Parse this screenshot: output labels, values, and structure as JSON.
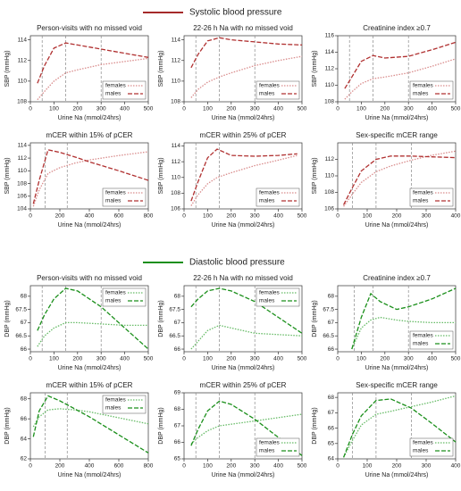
{
  "sections": [
    {
      "title": "Systolic blood pressure",
      "color": "#a52a2a"
    },
    {
      "title": "Diastolic blood pressure",
      "color": "#1a8f1a"
    }
  ],
  "chart_data": [
    {
      "type": "line",
      "section": 0,
      "title": "Person-visits with no missed void",
      "xlabel": "Urine Na (mmol/24hrs)",
      "ylabel": "SBP (mmHg)",
      "xlim": [
        0,
        500
      ],
      "xticks": [
        0,
        100,
        200,
        300,
        400,
        500
      ],
      "ylim": [
        108,
        114.4
      ],
      "yticks": [
        108,
        110,
        112,
        114
      ],
      "vlines": [
        50,
        150,
        300
      ],
      "legend": "lower right",
      "x": [
        30,
        60,
        100,
        150,
        200,
        300,
        400,
        500
      ],
      "series": [
        {
          "name": "females",
          "color": "#d98c8c",
          "dash": "dotted",
          "values": [
            108.2,
            109.0,
            110.0,
            110.8,
            111.1,
            111.6,
            111.9,
            112.2
          ]
        },
        {
          "name": "males",
          "color": "#b03030",
          "dash": "dashed",
          "values": [
            109.8,
            111.5,
            113.2,
            113.7,
            113.5,
            113.1,
            112.7,
            112.3
          ]
        }
      ]
    },
    {
      "type": "line",
      "section": 0,
      "title": "22-26 h Na with no missed void",
      "xlabel": "Urine Na (mmol/24hrs)",
      "ylabel": "SBP (mmHg)",
      "xlim": [
        0,
        500
      ],
      "xticks": [
        0,
        100,
        200,
        300,
        400,
        500
      ],
      "ylim": [
        108,
        114.4
      ],
      "yticks": [
        108,
        110,
        112,
        114
      ],
      "vlines": [
        50,
        150,
        300
      ],
      "legend": "lower right",
      "x": [
        30,
        60,
        100,
        150,
        200,
        300,
        400,
        500
      ],
      "series": [
        {
          "name": "females",
          "color": "#d98c8c",
          "dash": "dotted",
          "values": [
            108.4,
            109.2,
            109.9,
            110.4,
            110.8,
            111.5,
            112.0,
            112.4
          ]
        },
        {
          "name": "males",
          "color": "#b03030",
          "dash": "dashed",
          "values": [
            111.3,
            112.6,
            113.9,
            114.2,
            114.0,
            113.8,
            113.6,
            113.5
          ]
        }
      ]
    },
    {
      "type": "line",
      "section": 0,
      "title": "Creatinine index ≥0.7",
      "xlabel": "Urine Na (mmol/24hrs)",
      "ylabel": "SBP (mmHg)",
      "xlim": [
        0,
        500
      ],
      "xticks": [
        0,
        100,
        200,
        300,
        400,
        500
      ],
      "ylim": [
        108,
        116
      ],
      "yticks": [
        108,
        110,
        112,
        114,
        116
      ],
      "vlines": [
        50,
        150,
        300
      ],
      "legend": "lower right",
      "x": [
        30,
        60,
        100,
        150,
        200,
        300,
        400,
        500
      ],
      "series": [
        {
          "name": "females",
          "color": "#d98c8c",
          "dash": "dotted",
          "values": [
            108.3,
            109.2,
            110.2,
            110.8,
            111.0,
            111.5,
            112.3,
            113.2
          ]
        },
        {
          "name": "males",
          "color": "#b03030",
          "dash": "dashed",
          "values": [
            109.6,
            111.0,
            112.9,
            113.6,
            113.3,
            113.5,
            114.3,
            115.2
          ]
        }
      ]
    },
    {
      "type": "line",
      "section": 0,
      "title": "mCER within 15% of pCER",
      "xlabel": "Urine Na (mmol/24hrs)",
      "ylabel": "SBP (mmHg)",
      "xlim": [
        0,
        800
      ],
      "xticks": [
        0,
        200,
        400,
        600,
        800
      ],
      "ylim": [
        104,
        114.4
      ],
      "yticks": [
        104,
        106,
        108,
        110,
        112,
        114
      ],
      "vlines": [
        100,
        250
      ],
      "legend": "lower right",
      "x": [
        20,
        60,
        120,
        200,
        300,
        400,
        600,
        800
      ],
      "series": [
        {
          "name": "females",
          "color": "#d98c8c",
          "dash": "dotted",
          "values": [
            104.4,
            107.0,
            109.6,
            110.5,
            111.2,
            111.7,
            112.4,
            113.0
          ]
        },
        {
          "name": "males",
          "color": "#b03030",
          "dash": "dashed",
          "values": [
            104.8,
            108.5,
            113.3,
            112.9,
            112.2,
            111.4,
            110.0,
            108.5
          ]
        }
      ]
    },
    {
      "type": "line",
      "section": 0,
      "title": "mCER within 25% of pCER",
      "xlabel": "Urine Na (mmol/24hrs)",
      "ylabel": "SBP (mmHg)",
      "xlim": [
        0,
        500
      ],
      "xticks": [
        0,
        100,
        200,
        300,
        400,
        500
      ],
      "ylim": [
        106,
        114.4
      ],
      "yticks": [
        106,
        108,
        110,
        112,
        114
      ],
      "vlines": [
        50,
        150
      ],
      "legend": "lower right",
      "x": [
        30,
        60,
        100,
        140,
        200,
        300,
        400,
        480
      ],
      "series": [
        {
          "name": "females",
          "color": "#d98c8c",
          "dash": "dotted",
          "values": [
            106.4,
            107.8,
            109.2,
            110.0,
            110.6,
            111.5,
            112.2,
            112.8
          ]
        },
        {
          "name": "males",
          "color": "#b03030",
          "dash": "dashed",
          "values": [
            107.0,
            109.5,
            112.5,
            113.6,
            112.8,
            112.7,
            112.8,
            113.0
          ]
        }
      ]
    },
    {
      "type": "line",
      "section": 0,
      "title": "Sex-specific mCER range",
      "xlabel": "Urine Na (mmol/24hrs)",
      "ylabel": "SBP (mmHg)",
      "xlim": [
        0,
        400
      ],
      "xticks": [
        0,
        100,
        200,
        300,
        400
      ],
      "ylim": [
        106,
        114
      ],
      "yticks": [
        106,
        108,
        110,
        112
      ],
      "vlines": [
        50,
        130,
        250
      ],
      "legend": "lower right",
      "x": [
        20,
        50,
        80,
        130,
        180,
        250,
        320,
        400
      ],
      "series": [
        {
          "name": "females",
          "color": "#d98c8c",
          "dash": "dotted",
          "values": [
            106.3,
            107.8,
            109.2,
            110.5,
            111.2,
            111.9,
            112.5,
            113.0
          ]
        },
        {
          "name": "males",
          "color": "#b03030",
          "dash": "dashed",
          "values": [
            106.5,
            108.6,
            110.6,
            112.0,
            112.4,
            112.4,
            112.3,
            112.2
          ]
        }
      ]
    },
    {
      "type": "line",
      "section": 1,
      "title": "Person-visits with no missed void",
      "xlabel": "Urine Na (mmol/24hrs)",
      "ylabel": "DBP (mmHg)",
      "xlim": [
        0,
        500
      ],
      "xticks": [
        0,
        100,
        200,
        300,
        400,
        500
      ],
      "ylim": [
        65.9,
        68.4
      ],
      "yticks": [
        66,
        66.5,
        67,
        67.5,
        68
      ],
      "vlines": [
        50,
        150,
        300
      ],
      "legend": "upper right",
      "x": [
        30,
        60,
        100,
        150,
        200,
        300,
        400,
        500
      ],
      "series": [
        {
          "name": "females",
          "color": "#66bb66",
          "dash": "dotted",
          "values": [
            66.1,
            66.5,
            66.8,
            67.0,
            67.0,
            66.95,
            66.9,
            66.9
          ]
        },
        {
          "name": "males",
          "color": "#1a8f1a",
          "dash": "dashed",
          "values": [
            66.7,
            67.3,
            67.9,
            68.3,
            68.2,
            67.6,
            66.8,
            66.0
          ]
        }
      ]
    },
    {
      "type": "line",
      "section": 1,
      "title": "22-26 h Na with no missed void",
      "xlabel": "Urine Na (mmol/24hrs)",
      "ylabel": "DBP (mmHg)",
      "xlim": [
        0,
        500
      ],
      "xticks": [
        0,
        100,
        200,
        300,
        400,
        500
      ],
      "ylim": [
        65.9,
        68.4
      ],
      "yticks": [
        66,
        66.5,
        67,
        67.5,
        68
      ],
      "vlines": [
        50,
        150,
        300
      ],
      "legend": "upper right",
      "x": [
        30,
        60,
        100,
        150,
        200,
        300,
        400,
        500
      ],
      "series": [
        {
          "name": "females",
          "color": "#66bb66",
          "dash": "dotted",
          "values": [
            66.0,
            66.3,
            66.7,
            66.9,
            66.8,
            66.6,
            66.55,
            66.5
          ]
        },
        {
          "name": "males",
          "color": "#1a8f1a",
          "dash": "dashed",
          "values": [
            67.6,
            67.9,
            68.2,
            68.3,
            68.2,
            67.8,
            67.2,
            66.6
          ]
        }
      ]
    },
    {
      "type": "line",
      "section": 1,
      "title": "Creatinine index ≥0.7",
      "xlabel": "Urine Na (mmol/24hrs)",
      "ylabel": "DBP (mmHg)",
      "xlim": [
        0,
        500
      ],
      "xticks": [
        0,
        100,
        200,
        300,
        400,
        500
      ],
      "ylim": [
        65.9,
        68.4
      ],
      "yticks": [
        66,
        66.5,
        67,
        67.5,
        68
      ],
      "vlines": [
        70,
        150,
        300
      ],
      "legend": "lower right",
      "x": [
        60,
        100,
        140,
        180,
        250,
        300,
        400,
        500
      ],
      "series": [
        {
          "name": "females",
          "color": "#66bb66",
          "dash": "dotted",
          "values": [
            66.0,
            66.8,
            67.1,
            67.2,
            67.1,
            67.05,
            67.0,
            67.0
          ]
        },
        {
          "name": "males",
          "color": "#1a8f1a",
          "dash": "dashed",
          "values": [
            66.0,
            67.2,
            68.1,
            67.8,
            67.5,
            67.6,
            67.9,
            68.3
          ]
        }
      ]
    },
    {
      "type": "line",
      "section": 1,
      "title": "mCER within 15% of pCER",
      "xlabel": "Urine Na (mmol/24hrs)",
      "ylabel": "DBP (mmHg)",
      "xlim": [
        0,
        800
      ],
      "xticks": [
        0,
        200,
        400,
        600,
        800
      ],
      "ylim": [
        62,
        68.6
      ],
      "yticks": [
        62,
        64,
        66,
        68
      ],
      "vlines": [
        100,
        250
      ],
      "legend": "upper right",
      "x": [
        20,
        60,
        120,
        200,
        300,
        400,
        600,
        800
      ],
      "series": [
        {
          "name": "females",
          "color": "#66bb66",
          "dash": "dotted",
          "values": [
            65.2,
            66.2,
            66.9,
            67.0,
            66.9,
            66.7,
            66.1,
            65.5
          ]
        },
        {
          "name": "males",
          "color": "#1a8f1a",
          "dash": "dashed",
          "values": [
            64.2,
            66.8,
            68.3,
            67.8,
            67.0,
            66.2,
            64.4,
            62.6
          ]
        }
      ]
    },
    {
      "type": "line",
      "section": 1,
      "title": "mCER within 25% of pCER",
      "xlabel": "Urine Na (mmol/24hrs)",
      "ylabel": "DBP (mmHg)",
      "xlim": [
        0,
        500
      ],
      "xticks": [
        0,
        100,
        200,
        300,
        400,
        500
      ],
      "ylim": [
        65,
        69
      ],
      "yticks": [
        65,
        66,
        67,
        68,
        69
      ],
      "vlines": [
        50,
        150,
        300
      ],
      "legend": "lower right",
      "x": [
        30,
        60,
        100,
        150,
        200,
        300,
        400,
        500
      ],
      "series": [
        {
          "name": "females",
          "color": "#66bb66",
          "dash": "dotted",
          "values": [
            65.9,
            66.3,
            66.7,
            67.0,
            67.1,
            67.3,
            67.5,
            67.7
          ]
        },
        {
          "name": "males",
          "color": "#1a8f1a",
          "dash": "dashed",
          "values": [
            65.8,
            66.8,
            67.9,
            68.5,
            68.3,
            67.4,
            66.3,
            65.2
          ]
        }
      ]
    },
    {
      "type": "line",
      "section": 1,
      "title": "Sex-specific mCER range",
      "xlabel": "Urine Na (mmol/24hrs)",
      "ylabel": "DBP (mmHg)",
      "xlim": [
        0,
        400
      ],
      "xticks": [
        0,
        100,
        200,
        300,
        400
      ],
      "ylim": [
        64,
        68.3
      ],
      "yticks": [
        64,
        65,
        66,
        67,
        68
      ],
      "vlines": [
        50,
        130,
        250
      ],
      "legend": "lower right",
      "x": [
        20,
        50,
        80,
        130,
        180,
        250,
        320,
        400
      ],
      "series": [
        {
          "name": "females",
          "color": "#66bb66",
          "dash": "dotted",
          "values": [
            64.1,
            65.2,
            66.2,
            66.9,
            67.1,
            67.4,
            67.7,
            68.1
          ]
        },
        {
          "name": "males",
          "color": "#1a8f1a",
          "dash": "dashed",
          "values": [
            64.1,
            65.6,
            66.8,
            67.8,
            67.9,
            67.3,
            66.3,
            65.1
          ]
        }
      ]
    }
  ]
}
